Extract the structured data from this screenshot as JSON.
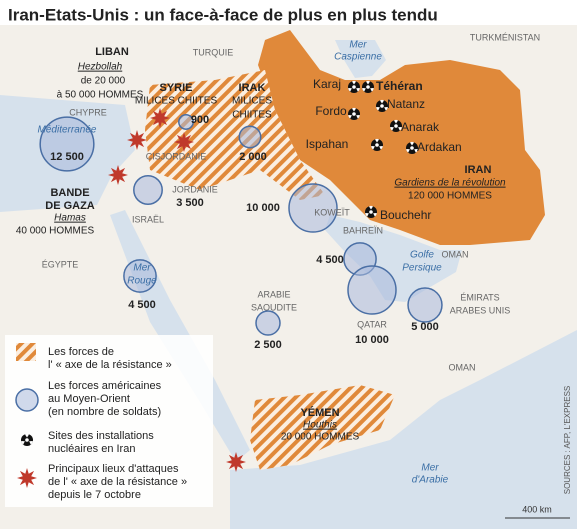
{
  "title": "Iran-Etats-Unis : un face-à-face de plus en plus tendu",
  "places": [
    "TURQUIE",
    "TURKMÉNISTAN",
    "CHYPRE",
    "ÉGYPTE",
    "ISRAËL",
    "CISJORDANIE",
    "JORDANIE",
    "KOWEÏT",
    "BAHREÏN",
    "OMAN",
    "OMAN",
    "ARABIE",
    "SAOUDITE",
    "QATAR",
    "ÉMIRATS",
    "ARABES UNIS"
  ],
  "seas": [
    "Mer",
    "Caspienne",
    "Méditerranée",
    "Mer",
    "Rouge",
    "Golfe",
    "Persique",
    "Mer",
    "d'Arabie"
  ],
  "groups": [
    {
      "lines": [
        "LIBAN",
        "Hezbollah",
        "de 20 000",
        "à 50 000 HOMMES"
      ]
    },
    {
      "lines": [
        "SYRIE",
        "MILICES CHIITES"
      ]
    },
    {
      "lines": [
        "IRAK",
        "MILICES",
        "CHIITES"
      ]
    },
    {
      "lines": [
        "IRAN",
        "Gardiens de la révolution",
        "120 000 HOMMES"
      ]
    },
    {
      "lines": [
        "BANDE",
        "DE GAZA",
        "Hamas",
        "40 000 HOMMES"
      ]
    },
    {
      "lines": [
        "YÉMEN",
        "Houthis",
        "20 000 HOMMES"
      ]
    }
  ],
  "nuclear_sites": [
    "Karaj",
    "Téhéran",
    "Fordo",
    "Natanz",
    "Anarak",
    "Ispahan",
    "Ardakan",
    "Bouchehr"
  ],
  "us_forces": [
    {
      "label": "12 500",
      "value": 12500
    },
    {
      "label": "900",
      "value": 900
    },
    {
      "label": "2 000",
      "value": 2000
    },
    {
      "label": "3 500",
      "value": 3500
    },
    {
      "label": "10 000",
      "value": 10000
    },
    {
      "label": "4 500",
      "value": 4500
    },
    {
      "label": "10 000",
      "value": 10000
    },
    {
      "label": "5 000",
      "value": 5000
    },
    {
      "label": "4 500",
      "value": 4500
    },
    {
      "label": "2 500",
      "value": 2500
    }
  ],
  "legend": [
    [
      "Les forces de",
      "l' « axe de la résistance »"
    ],
    [
      "Les forces américaines",
      "au Moyen-Orient",
      "(en nombre de soldats)"
    ],
    [
      "Sites des installations",
      "nucléaires en Iran"
    ],
    [
      "Principaux lieux d'attaques",
      "de l' « axe de la résistance »",
      "depuis le 7 octobre"
    ]
  ],
  "scale": "400 km",
  "source": "SOURCES : AFP, L'EXPRESS"
}
